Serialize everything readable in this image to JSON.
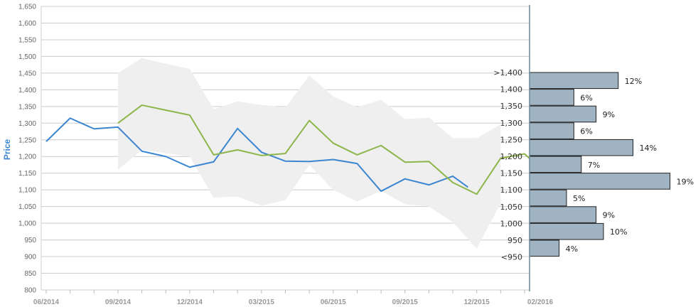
{
  "chart_data": [
    {
      "type": "line",
      "ylabel": "Price",
      "ylim": [
        800,
        1650
      ],
      "yticks": [
        800,
        850,
        900,
        950,
        1000,
        1050,
        1100,
        1150,
        1200,
        1250,
        1300,
        1350,
        1400,
        1450,
        1500,
        1550,
        1600,
        1650
      ],
      "ytick_labels": [
        "800",
        "850",
        "900",
        "950",
        "1,000",
        "1,050",
        "1,100",
        "1,150",
        "1,200",
        "1,250",
        "1,300",
        "1,350",
        "1,400",
        "1,450",
        "1,500",
        "1,550",
        "1,600",
        "1,650"
      ],
      "xlim": [
        "2014-06",
        "2016-02"
      ],
      "x_ticks": [
        "2014-06",
        "2014-09",
        "2014-12",
        "2015-03",
        "2015-06",
        "2015-09",
        "2015-12",
        "2016-02"
      ],
      "x_tick_labels": [
        "06/2014",
        "09/2014",
        "12/2014",
        "03/2015",
        "06/2015",
        "09/2015",
        "12/2015",
        "02/2016"
      ],
      "grid": true,
      "colors": {
        "price": "#3b86d1",
        "forecast": "#8db54a",
        "band": "#efefef",
        "grid": "#cccccc"
      },
      "series": [
        {
          "key": "price",
          "x": [
            "2014-06",
            "2014-07",
            "2014-08",
            "2014-09",
            "2014-10",
            "2014-11",
            "2014-12",
            "2015-01",
            "2015-02",
            "2015-03",
            "2015-04",
            "2015-05",
            "2015-06",
            "2015-07",
            "2015-08",
            "2015-09",
            "2015-10",
            "2015-11",
            "2015-11-20"
          ],
          "values": [
            1245,
            1315,
            1283,
            1288,
            1216,
            1200,
            1168,
            1184,
            1284,
            1213,
            1186,
            1185,
            1191,
            1179,
            1096,
            1133,
            1115,
            1141,
            1108
          ]
        },
        {
          "key": "forecast",
          "x": [
            "2014-09",
            "2014-10",
            "2014-11",
            "2014-12",
            "2015-01",
            "2015-02",
            "2015-03",
            "2015-04",
            "2015-05",
            "2015-06",
            "2015-07",
            "2015-08",
            "2015-09",
            "2015-10",
            "2015-11",
            "2015-12",
            "2016-01",
            "2016-02",
            "2016-02-10"
          ],
          "values": [
            1300,
            1354,
            1339,
            1324,
            1205,
            1220,
            1203,
            1209,
            1308,
            1240,
            1205,
            1233,
            1183,
            1185,
            1122,
            1087,
            1195,
            1208,
            1188
          ]
        }
      ],
      "band": {
        "x": [
          "2014-09",
          "2014-10",
          "2014-11",
          "2014-12",
          "2015-01",
          "2015-02",
          "2015-03",
          "2015-04",
          "2015-05",
          "2015-06",
          "2015-07",
          "2015-08",
          "2015-09",
          "2015-10",
          "2015-11",
          "2015-12",
          "2016-01"
        ],
        "upper": [
          1450,
          1495,
          1478,
          1463,
          1342,
          1365,
          1355,
          1347,
          1443,
          1380,
          1348,
          1370,
          1312,
          1317,
          1255,
          1255,
          1296
        ],
        "lower": [
          1160,
          1220,
          1210,
          1200,
          1077,
          1080,
          1053,
          1069,
          1175,
          1100,
          1065,
          1097,
          1057,
          1050,
          1003,
          924,
          1060
        ]
      }
    },
    {
      "type": "bar",
      "orientation": "horizontal",
      "categories": [
        ">1,400",
        "1,400",
        "1,350",
        "1,300",
        "1,250",
        "1,200",
        "1,150",
        "1,100",
        "1,050",
        "1,000",
        "950",
        "<950"
      ],
      "values": [
        12,
        6,
        9,
        6,
        14,
        7,
        19,
        5,
        9,
        10,
        4,
        0
      ],
      "value_labels": [
        "12%",
        "6%",
        "9%",
        "6%",
        "14%",
        "7%",
        "19%",
        "5%",
        "9%",
        "10%",
        "4%",
        ""
      ],
      "colors": {
        "bar": "#9fb3c2",
        "border": "#222222"
      }
    }
  ]
}
